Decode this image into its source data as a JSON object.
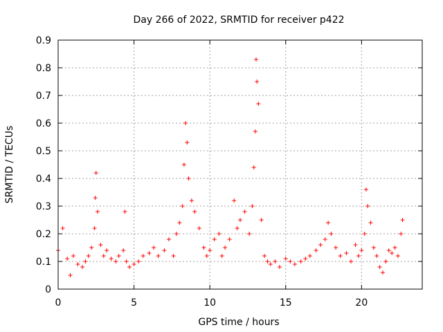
{
  "chart_data": {
    "type": "scatter",
    "title": "Day 266 of 2022, SRMTID for receiver p422",
    "xlabel": "GPS time / hours",
    "ylabel": "SRMTID / TECUs",
    "xlim": [
      0,
      24
    ],
    "ylim": [
      0,
      0.9
    ],
    "x_ticks": [
      0,
      5,
      10,
      15,
      20
    ],
    "y_ticks": [
      0,
      0.1,
      0.2,
      0.3,
      0.4,
      0.5,
      0.6,
      0.7,
      0.8,
      0.9
    ],
    "x_tick_labels": [
      "0",
      "5",
      "10",
      "15",
      "20"
    ],
    "y_tick_labels": [
      "0",
      "0.1",
      "0.2",
      "0.3",
      "0.4",
      "0.5",
      "0.6",
      "0.7",
      "0.8",
      "0.9"
    ],
    "grid": true,
    "marker": "+",
    "series": [
      {
        "name": "p422",
        "color": "#ff0000",
        "x": [
          0.0,
          0.3,
          0.6,
          0.8,
          1.0,
          1.3,
          1.6,
          1.8,
          2.0,
          2.2,
          2.4,
          2.45,
          2.5,
          2.6,
          2.8,
          3.0,
          3.2,
          3.5,
          3.8,
          4.0,
          4.3,
          4.4,
          4.5,
          4.7,
          5.0,
          5.3,
          5.6,
          6.0,
          6.3,
          6.6,
          7.0,
          7.3,
          7.6,
          7.8,
          8.0,
          8.2,
          8.3,
          8.4,
          8.5,
          8.6,
          8.8,
          9.0,
          9.3,
          9.6,
          9.8,
          10.0,
          10.3,
          10.6,
          10.8,
          11.0,
          11.3,
          11.6,
          11.8,
          12.0,
          12.3,
          12.6,
          12.8,
          12.9,
          13.0,
          13.05,
          13.1,
          13.2,
          13.4,
          13.6,
          13.8,
          14.0,
          14.3,
          14.6,
          15.0,
          15.3,
          15.6,
          16.0,
          16.3,
          16.6,
          17.0,
          17.3,
          17.6,
          17.8,
          18.0,
          18.3,
          18.6,
          19.0,
          19.3,
          19.6,
          19.8,
          20.0,
          20.2,
          20.3,
          20.4,
          20.6,
          20.8,
          21.0,
          21.2,
          21.4,
          21.6,
          21.8,
          22.0,
          22.2,
          22.4,
          22.6,
          22.7
        ],
        "y": [
          0.14,
          0.22,
          0.11,
          0.05,
          0.12,
          0.09,
          0.08,
          0.1,
          0.12,
          0.15,
          0.22,
          0.33,
          0.42,
          0.28,
          0.16,
          0.12,
          0.14,
          0.11,
          0.1,
          0.12,
          0.14,
          0.28,
          0.1,
          0.08,
          0.09,
          0.1,
          0.12,
          0.13,
          0.15,
          0.12,
          0.14,
          0.18,
          0.12,
          0.2,
          0.24,
          0.3,
          0.45,
          0.6,
          0.53,
          0.4,
          0.32,
          0.28,
          0.22,
          0.15,
          0.12,
          0.14,
          0.18,
          0.2,
          0.12,
          0.15,
          0.18,
          0.32,
          0.22,
          0.25,
          0.28,
          0.2,
          0.3,
          0.44,
          0.57,
          0.83,
          0.75,
          0.67,
          0.25,
          0.12,
          0.1,
          0.09,
          0.1,
          0.08,
          0.11,
          0.1,
          0.09,
          0.1,
          0.11,
          0.12,
          0.14,
          0.16,
          0.18,
          0.24,
          0.2,
          0.15,
          0.12,
          0.13,
          0.1,
          0.16,
          0.12,
          0.14,
          0.2,
          0.36,
          0.3,
          0.24,
          0.15,
          0.12,
          0.08,
          0.06,
          0.1,
          0.14,
          0.13,
          0.15,
          0.12,
          0.2,
          0.25
        ]
      }
    ]
  }
}
